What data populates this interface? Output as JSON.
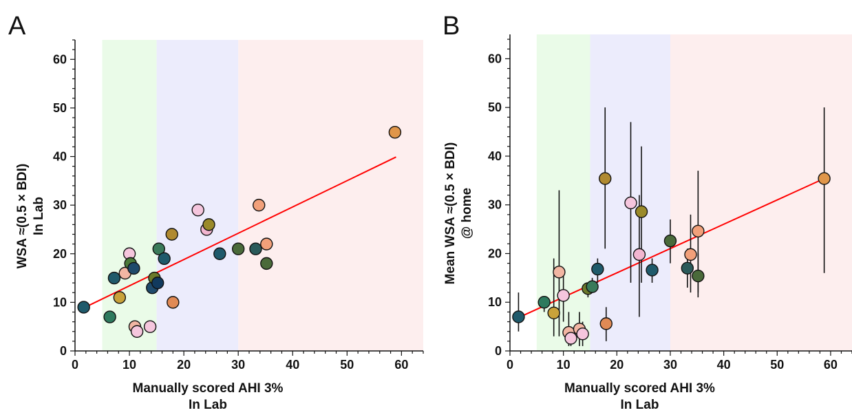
{
  "panels": [
    {
      "letter": "A",
      "chart_data": {
        "type": "scatter",
        "xlabel": [
          "Manually scored AHI 3%",
          "In Lab"
        ],
        "ylabel": [
          "WSA ≈(0.5 × BDI)",
          "In Lab"
        ],
        "xlim": [
          0,
          64
        ],
        "ylim": [
          0,
          64
        ],
        "xticks": [
          "0",
          "10",
          "20",
          "30",
          "40",
          "50",
          "60"
        ],
        "yticks": [
          "0",
          "10",
          "20",
          "30",
          "40",
          "50",
          "60"
        ],
        "bands": [
          {
            "from": 5,
            "to": 15,
            "color": "#eafbe8"
          },
          {
            "from": 15,
            "to": 30,
            "color": "#ececfc"
          },
          {
            "from": 30,
            "to": 64,
            "color": "#fdeeee"
          }
        ],
        "fit_line": {
          "x": [
            1.5,
            59
          ],
          "y": [
            8.8,
            39.9
          ],
          "color": "#ff0000"
        },
        "points": [
          {
            "x": 1.6,
            "y": 9,
            "color": "#1f5a6b"
          },
          {
            "x": 6.4,
            "y": 7,
            "color": "#2e7a5e"
          },
          {
            "x": 7.2,
            "y": 15,
            "color": "#1f5a6b"
          },
          {
            "x": 8.2,
            "y": 11,
            "color": "#c9a23a"
          },
          {
            "x": 9.2,
            "y": 16,
            "color": "#f2b6a3"
          },
          {
            "x": 10.0,
            "y": 20,
            "color": "#f5c6dd"
          },
          {
            "x": 10.2,
            "y": 18,
            "color": "#4a7a3a"
          },
          {
            "x": 10.8,
            "y": 17,
            "color": "#1f4a6b"
          },
          {
            "x": 11.0,
            "y": 5,
            "color": "#f2b6a3"
          },
          {
            "x": 11.4,
            "y": 4,
            "color": "#f5c6dd"
          },
          {
            "x": 13.8,
            "y": 5,
            "color": "#f5c6dd"
          },
          {
            "x": 14.2,
            "y": 13,
            "color": "#1f4a6b"
          },
          {
            "x": 14.6,
            "y": 15,
            "color": "#6b7a2a"
          },
          {
            "x": 15.2,
            "y": 14,
            "color": "#123a5e"
          },
          {
            "x": 15.4,
            "y": 21,
            "color": "#3a7a5a"
          },
          {
            "x": 16.4,
            "y": 19,
            "color": "#1f5a6b"
          },
          {
            "x": 17.8,
            "y": 24,
            "color": "#b08a30"
          },
          {
            "x": 18.0,
            "y": 10,
            "color": "#e08a55"
          },
          {
            "x": 22.6,
            "y": 29,
            "color": "#f5c6dd"
          },
          {
            "x": 24.2,
            "y": 25,
            "color": "#f2b6d0"
          },
          {
            "x": 24.6,
            "y": 26,
            "color": "#9a8a2a"
          },
          {
            "x": 26.6,
            "y": 20,
            "color": "#1f5a6b"
          },
          {
            "x": 30.0,
            "y": 21,
            "color": "#4a6a3a"
          },
          {
            "x": 33.2,
            "y": 21,
            "color": "#2a5a5a"
          },
          {
            "x": 33.8,
            "y": 30,
            "color": "#f2a07a"
          },
          {
            "x": 35.2,
            "y": 22,
            "color": "#f2a07a"
          },
          {
            "x": 35.2,
            "y": 18,
            "color": "#4a6a3a"
          },
          {
            "x": 58.8,
            "y": 45,
            "color": "#e0964a"
          }
        ]
      }
    },
    {
      "letter": "B",
      "chart_data": {
        "type": "scatter",
        "xlabel": [
          "Manually scored AHI 3%",
          "In Lab"
        ],
        "ylabel": [
          "Mean WSA ≈(0.5 × BDI)",
          "@ home"
        ],
        "xlim": [
          0,
          64
        ],
        "ylim": [
          0,
          65
        ],
        "xticks": [
          "0",
          "10",
          "20",
          "30",
          "40",
          "50",
          "60"
        ],
        "yticks": [
          "0",
          "10",
          "20",
          "30",
          "40",
          "50",
          "60"
        ],
        "bands": [
          {
            "from": 5,
            "to": 15,
            "color": "#eafbe8"
          },
          {
            "from": 15,
            "to": 30,
            "color": "#ececfc"
          },
          {
            "from": 30,
            "to": 64,
            "color": "#fdeeee"
          }
        ],
        "fit_line": {
          "x": [
            1.5,
            59
          ],
          "y": [
            6.8,
            35.5
          ],
          "color": "#ff0000"
        },
        "points": [
          {
            "x": 1.6,
            "y": 7,
            "lo": 4,
            "hi": 12,
            "color": "#1f5a6b"
          },
          {
            "x": 6.4,
            "y": 10,
            "lo": 8,
            "hi": 11,
            "color": "#2e7a5e"
          },
          {
            "x": 8.2,
            "y": 7.8,
            "lo": 3,
            "hi": 19,
            "color": "#c9a23a"
          },
          {
            "x": 9.2,
            "y": 16.2,
            "lo": 3,
            "hi": 33,
            "color": "#f2b6a3"
          },
          {
            "x": 10.0,
            "y": 11.4,
            "lo": 6,
            "hi": 17,
            "color": "#f5c6dd"
          },
          {
            "x": 11.0,
            "y": 3.8,
            "lo": 1,
            "hi": 8,
            "color": "#f2b6a3"
          },
          {
            "x": 11.4,
            "y": 2.6,
            "lo": 1,
            "hi": 5,
            "color": "#f5c6dd"
          },
          {
            "x": 13.0,
            "y": 4.5,
            "lo": 1,
            "hi": 8,
            "color": "#f2b6a3"
          },
          {
            "x": 13.6,
            "y": 3.5,
            "lo": 1,
            "hi": 6,
            "color": "#f5c6dd"
          },
          {
            "x": 14.6,
            "y": 12.8,
            "lo": 11,
            "hi": 14,
            "color": "#6b7a2a"
          },
          {
            "x": 15.4,
            "y": 13.2,
            "lo": 12,
            "hi": 15,
            "color": "#3a7a5a"
          },
          {
            "x": 16.4,
            "y": 16.8,
            "lo": 14,
            "hi": 19,
            "color": "#1f5a6b"
          },
          {
            "x": 17.8,
            "y": 35.4,
            "lo": 21,
            "hi": 50,
            "color": "#b08a30"
          },
          {
            "x": 18.0,
            "y": 5.6,
            "lo": 2,
            "hi": 9,
            "color": "#e08a55"
          },
          {
            "x": 22.6,
            "y": 30.4,
            "lo": 14,
            "hi": 47,
            "color": "#f5c6dd"
          },
          {
            "x": 24.2,
            "y": 19.8,
            "lo": 7,
            "hi": 32,
            "color": "#f2b6d0"
          },
          {
            "x": 24.6,
            "y": 28.6,
            "lo": 14,
            "hi": 42,
            "color": "#9a8a2a"
          },
          {
            "x": 26.6,
            "y": 16.6,
            "lo": 14,
            "hi": 19,
            "color": "#1f5a6b"
          },
          {
            "x": 30.0,
            "y": 22.6,
            "lo": 18,
            "hi": 27,
            "color": "#4a6a3a"
          },
          {
            "x": 33.2,
            "y": 17.0,
            "lo": 13,
            "hi": 21,
            "color": "#2a5a5a"
          },
          {
            "x": 33.8,
            "y": 19.8,
            "lo": 12,
            "hi": 28,
            "color": "#f2a07a"
          },
          {
            "x": 35.2,
            "y": 24.6,
            "lo": 12,
            "hi": 37,
            "color": "#f2a07a"
          },
          {
            "x": 35.2,
            "y": 15.4,
            "lo": 11,
            "hi": 20,
            "color": "#4a6a3a"
          },
          {
            "x": 58.8,
            "y": 35.4,
            "lo": 16,
            "hi": 50,
            "color": "#e0964a"
          }
        ]
      }
    }
  ]
}
